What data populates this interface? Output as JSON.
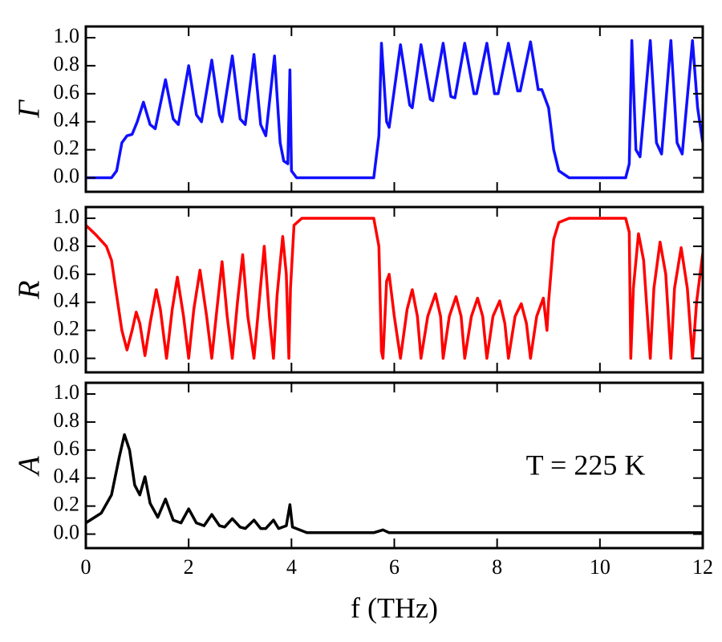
{
  "chart_data": [
    {
      "type": "line",
      "ylabel": "Γ",
      "color": "#1010ff",
      "x": [
        0,
        0.5,
        0.6,
        0.7,
        0.8,
        0.9,
        1.0,
        1.12,
        1.25,
        1.35,
        1.55,
        1.7,
        1.8,
        2.0,
        2.15,
        2.25,
        2.45,
        2.6,
        2.65,
        2.85,
        3.0,
        3.1,
        3.27,
        3.4,
        3.5,
        3.67,
        3.78,
        3.85,
        3.93,
        3.97,
        4.0,
        4.1,
        5.6,
        5.7,
        5.75,
        5.85,
        5.9,
        6.12,
        6.3,
        6.35,
        6.52,
        6.7,
        6.75,
        6.95,
        7.1,
        7.18,
        7.37,
        7.55,
        7.6,
        7.8,
        7.95,
        8.02,
        8.22,
        8.4,
        8.45,
        8.65,
        8.8,
        8.87,
        9.0,
        9.1,
        9.2,
        9.4,
        10.5,
        10.57,
        10.62,
        10.7,
        10.78,
        10.98,
        11.1,
        11.2,
        11.38,
        11.5,
        11.6,
        11.8,
        11.9,
        12
      ],
      "values": [
        0,
        0,
        0.05,
        0.25,
        0.3,
        0.31,
        0.4,
        0.54,
        0.38,
        0.35,
        0.7,
        0.42,
        0.38,
        0.8,
        0.45,
        0.4,
        0.84,
        0.45,
        0.4,
        0.87,
        0.42,
        0.38,
        0.88,
        0.38,
        0.3,
        0.87,
        0.25,
        0.12,
        0.1,
        0.77,
        0.05,
        0,
        0,
        0.3,
        0.96,
        0.4,
        0.36,
        0.95,
        0.52,
        0.5,
        0.95,
        0.56,
        0.55,
        0.96,
        0.58,
        0.57,
        0.96,
        0.6,
        0.6,
        0.96,
        0.6,
        0.6,
        0.96,
        0.62,
        0.62,
        0.97,
        0.63,
        0.63,
        0.5,
        0.2,
        0.05,
        0,
        0,
        0.1,
        0.98,
        0.2,
        0.15,
        0.98,
        0.25,
        0.17,
        0.98,
        0.25,
        0.17,
        0.98,
        0.5,
        0.25
      ],
      "xlim": [
        0,
        12
      ],
      "xticks": [
        0,
        2,
        4,
        6,
        8,
        10,
        12
      ],
      "ylim": [
        -0.1,
        1.08
      ],
      "yticks": [
        {
          "value": 0,
          "label": "0.0"
        },
        {
          "value": 0.2,
          "label": "0.2"
        },
        {
          "value": 0.4,
          "label": "0.4"
        },
        {
          "value": 0.6,
          "label": "0.6"
        },
        {
          "value": 0.8,
          "label": "0.8"
        },
        {
          "value": 1,
          "label": "1.0"
        }
      ]
    },
    {
      "type": "line",
      "ylabel": "R",
      "color": "#ff0000",
      "x": [
        0,
        0.2,
        0.4,
        0.5,
        0.6,
        0.7,
        0.8,
        0.9,
        0.98,
        1.05,
        1.15,
        1.25,
        1.37,
        1.45,
        1.57,
        1.68,
        1.78,
        1.9,
        2.0,
        2.1,
        2.22,
        2.35,
        2.45,
        2.55,
        2.65,
        2.75,
        2.85,
        2.95,
        3.05,
        3.15,
        3.27,
        3.37,
        3.47,
        3.57,
        3.65,
        3.72,
        3.83,
        3.9,
        3.95,
        3.98,
        4.05,
        4.2,
        5.6,
        5.7,
        5.75,
        5.78,
        5.85,
        5.9,
        6.0,
        6.12,
        6.25,
        6.35,
        6.45,
        6.52,
        6.65,
        6.8,
        6.9,
        6.95,
        7.07,
        7.2,
        7.3,
        7.37,
        7.5,
        7.62,
        7.72,
        7.8,
        7.92,
        8.05,
        8.15,
        8.22,
        8.35,
        8.47,
        8.57,
        8.65,
        8.77,
        8.9,
        8.97,
        9.0,
        9.1,
        9.2,
        9.4,
        10.5,
        10.57,
        10.6,
        10.65,
        10.75,
        10.85,
        10.98,
        11.05,
        11.17,
        11.28,
        11.38,
        11.45,
        11.58,
        11.7,
        11.8,
        11.88,
        12
      ],
      "values": [
        0.95,
        0.88,
        0.8,
        0.7,
        0.45,
        0.2,
        0.06,
        0.2,
        0.33,
        0.25,
        0.02,
        0.25,
        0.49,
        0.35,
        0,
        0.35,
        0.58,
        0.3,
        0,
        0.35,
        0.63,
        0.3,
        0,
        0.35,
        0.69,
        0.3,
        0,
        0.4,
        0.74,
        0.3,
        0,
        0.4,
        0.8,
        0.3,
        0,
        0.45,
        0.87,
        0.6,
        0,
        0.5,
        0.95,
        1,
        1,
        0.8,
        0.05,
        0,
        0.55,
        0.6,
        0.3,
        0,
        0.35,
        0.49,
        0.3,
        0,
        0.3,
        0.46,
        0.3,
        0,
        0.3,
        0.44,
        0.3,
        0,
        0.3,
        0.43,
        0.3,
        0,
        0.3,
        0.41,
        0.25,
        0,
        0.3,
        0.39,
        0.25,
        0,
        0.3,
        0.43,
        0.2,
        0.4,
        0.85,
        0.97,
        1,
        1,
        0.9,
        0,
        0.5,
        0.89,
        0.7,
        0,
        0.5,
        0.83,
        0.6,
        0,
        0.5,
        0.79,
        0.5,
        0,
        0.4,
        0.75
      ],
      "xlim": [
        0,
        12
      ],
      "xticks": [
        0,
        2,
        4,
        6,
        8,
        10,
        12
      ],
      "ylim": [
        -0.1,
        1.08
      ],
      "yticks": [
        {
          "value": 0,
          "label": "0.0"
        },
        {
          "value": 0.2,
          "label": "0.2"
        },
        {
          "value": 0.4,
          "label": "0.4"
        },
        {
          "value": 0.6,
          "label": "0.6"
        },
        {
          "value": 0.8,
          "label": "0.8"
        },
        {
          "value": 1,
          "label": "1.0"
        }
      ]
    },
    {
      "type": "line",
      "ylabel": "A",
      "xlabel": "f (THz)",
      "annotation": "T = 225 K",
      "color": "#000000",
      "x": [
        0,
        0.3,
        0.5,
        0.65,
        0.75,
        0.85,
        0.95,
        1.05,
        1.15,
        1.25,
        1.4,
        1.55,
        1.7,
        1.85,
        2.0,
        2.15,
        2.3,
        2.45,
        2.6,
        2.7,
        2.85,
        3.0,
        3.1,
        3.27,
        3.4,
        3.5,
        3.65,
        3.75,
        3.9,
        3.97,
        4.02,
        4.3,
        5.6,
        5.78,
        5.9,
        12
      ],
      "values": [
        0.08,
        0.15,
        0.28,
        0.55,
        0.71,
        0.6,
        0.35,
        0.28,
        0.41,
        0.22,
        0.12,
        0.25,
        0.1,
        0.08,
        0.18,
        0.08,
        0.06,
        0.14,
        0.06,
        0.05,
        0.11,
        0.05,
        0.04,
        0.1,
        0.04,
        0.04,
        0.1,
        0.04,
        0.06,
        0.21,
        0.05,
        0.01,
        0.01,
        0.03,
        0.01,
        0.01
      ],
      "xlim": [
        0,
        12
      ],
      "xticks": [
        0,
        2,
        4,
        6,
        8,
        10,
        12
      ],
      "ylim": [
        -0.1,
        1.08
      ],
      "yticks": [
        {
          "value": 0,
          "label": "0.0"
        },
        {
          "value": 0.2,
          "label": "0.2"
        },
        {
          "value": 0.4,
          "label": "0.4"
        },
        {
          "value": 0.6,
          "label": "0.6"
        },
        {
          "value": 0.8,
          "label": "0.8"
        },
        {
          "value": 1,
          "label": "1.0"
        }
      ]
    }
  ]
}
